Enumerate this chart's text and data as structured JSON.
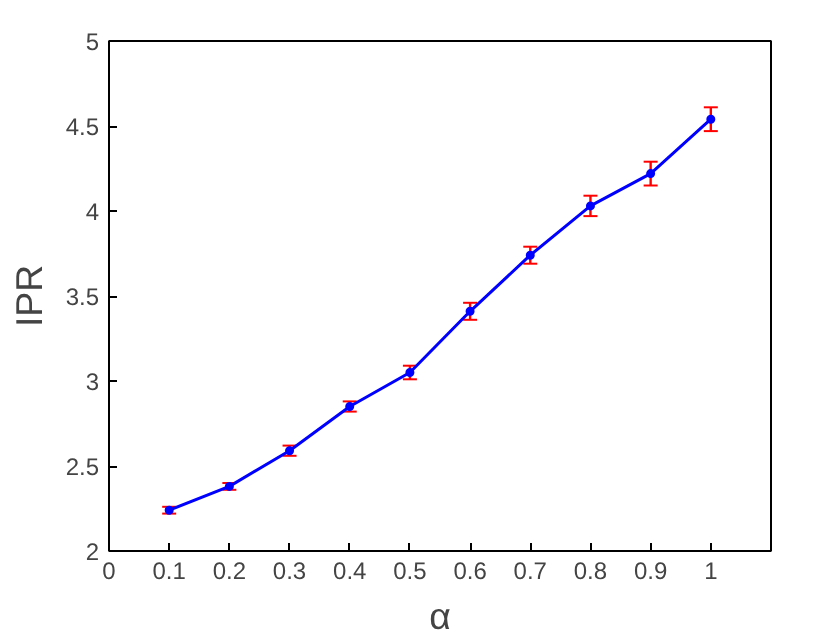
{
  "chart_data": {
    "type": "line",
    "xlabel": "α",
    "ylabel": "IPR",
    "x": [
      0.1,
      0.2,
      0.3,
      0.4,
      0.5,
      0.6,
      0.7,
      0.8,
      0.9,
      1.0
    ],
    "series": [
      {
        "color": "#0000ff",
        "values": [
          2.24,
          2.38,
          2.59,
          2.85,
          3.05,
          3.41,
          3.74,
          4.03,
          4.22,
          4.54
        ],
        "errors": [
          0.02,
          0.02,
          0.03,
          0.03,
          0.04,
          0.05,
          0.05,
          0.06,
          0.07,
          0.07
        ]
      }
    ],
    "xlim": [
      0,
      1.1
    ],
    "xticks": [
      0,
      0.1,
      0.2,
      0.3,
      0.4,
      0.5,
      0.6,
      0.7,
      0.8,
      0.9,
      1
    ],
    "ylim": [
      2,
      5
    ],
    "yticks": [
      2,
      2.5,
      3,
      3.5,
      4,
      4.5,
      5
    ],
    "grid": false,
    "marker": "circle",
    "line_style": "solid"
  }
}
